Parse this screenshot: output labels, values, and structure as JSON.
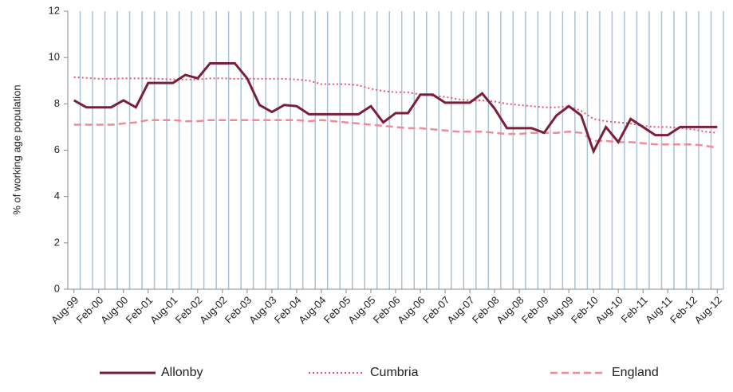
{
  "chart_data": {
    "type": "line",
    "ylabel": "% of working age population",
    "categories": [
      "Aug-99",
      null,
      "Feb-00",
      null,
      "Aug-00",
      null,
      "Feb-01",
      null,
      "Aug-01",
      null,
      "Feb-02",
      null,
      "Aug-02",
      null,
      "Feb-03",
      null,
      "Aug-03",
      null,
      "Feb-04",
      null,
      "Aug-04",
      null,
      "Feb-05",
      null,
      "Aug-05",
      null,
      "Feb-06",
      null,
      "Aug-06",
      null,
      "Feb-07",
      null,
      "Aug-07",
      null,
      "Feb-08",
      null,
      "Aug-08",
      null,
      "Feb-09",
      null,
      "Aug-09",
      null,
      "Feb-10",
      null,
      "Aug-10",
      null,
      "Feb-11",
      null,
      "Aug-11",
      null,
      "Feb-12",
      null,
      "Aug-12"
    ],
    "series": [
      {
        "name": "Allonby",
        "color": "#7b1e3a",
        "style": "solid",
        "values": [
          8.15,
          7.85,
          7.85,
          7.85,
          8.15,
          7.85,
          8.9,
          8.9,
          8.9,
          9.25,
          9.1,
          9.75,
          9.75,
          9.75,
          9.1,
          7.95,
          7.65,
          7.95,
          7.9,
          7.55,
          7.55,
          7.55,
          7.55,
          7.55,
          7.9,
          7.2,
          7.6,
          7.6,
          8.4,
          8.4,
          8.05,
          8.05,
          8.05,
          8.45,
          7.8,
          6.95,
          6.95,
          6.95,
          6.75,
          7.5,
          7.9,
          7.5,
          5.95,
          7.0,
          6.35,
          7.35,
          7.0,
          6.65,
          6.65,
          7.0,
          7.0,
          7.0,
          7.0
        ]
      },
      {
        "name": "Cumbria",
        "color": "#e8556b",
        "style": "dotted",
        "values": [
          9.15,
          9.12,
          9.08,
          9.08,
          9.1,
          9.1,
          9.1,
          9.08,
          9.05,
          9.05,
          9.05,
          9.1,
          9.1,
          9.08,
          9.08,
          9.08,
          9.08,
          9.08,
          9.05,
          9.0,
          8.85,
          8.85,
          8.85,
          8.8,
          8.65,
          8.55,
          8.5,
          8.5,
          8.4,
          8.35,
          8.3,
          8.2,
          8.15,
          8.15,
          8.1,
          8.0,
          7.95,
          7.9,
          7.85,
          7.85,
          7.9,
          7.7,
          7.35,
          7.25,
          7.2,
          7.15,
          7.05,
          7.0,
          7.0,
          6.95,
          6.9,
          6.8,
          6.75
        ]
      },
      {
        "name": "England",
        "color": "#f08a96",
        "style": "dashed",
        "values": [
          7.1,
          7.1,
          7.1,
          7.1,
          7.15,
          7.2,
          7.3,
          7.3,
          7.3,
          7.25,
          7.25,
          7.3,
          7.3,
          7.3,
          7.3,
          7.3,
          7.3,
          7.3,
          7.3,
          7.25,
          7.3,
          7.25,
          7.2,
          7.15,
          7.1,
          7.05,
          7.0,
          6.95,
          6.95,
          6.9,
          6.85,
          6.8,
          6.8,
          6.8,
          6.75,
          6.7,
          6.7,
          6.75,
          6.75,
          6.75,
          6.8,
          6.75,
          6.4,
          6.4,
          6.35,
          6.35,
          6.3,
          6.25,
          6.25,
          6.25,
          6.25,
          6.2,
          6.1
        ]
      }
    ],
    "ylim": [
      0,
      12
    ],
    "yticks": [
      0,
      2,
      4,
      6,
      8,
      10,
      12
    ],
    "grid": true,
    "legend": "bottom"
  }
}
